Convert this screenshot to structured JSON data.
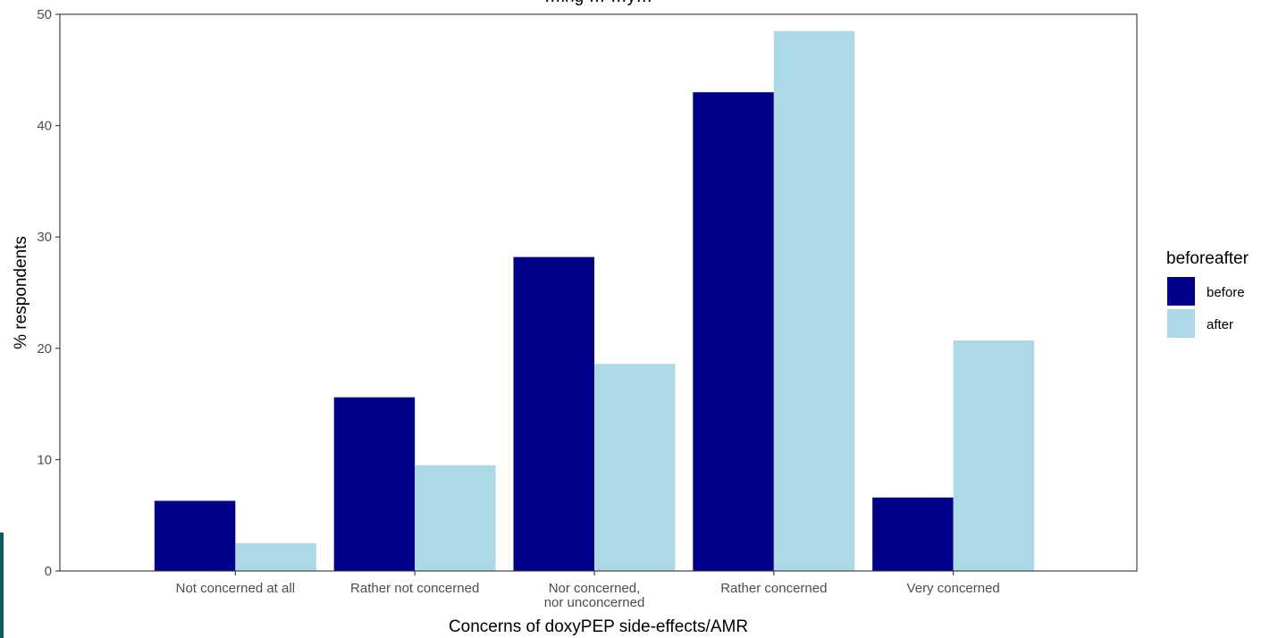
{
  "chart_data": {
    "type": "bar",
    "title": "…ing … …y…",
    "xlabel": "Concerns of doxyPEP side-effects/AMR",
    "ylabel": "% respondents",
    "categories": [
      [
        "Not concerned at all"
      ],
      [
        "Rather not concerned"
      ],
      [
        "Nor concerned,",
        "nor unconcerned"
      ],
      [
        "Rather concerned"
      ],
      [
        "Very concerned"
      ]
    ],
    "series": [
      {
        "name": "before",
        "values": [
          6.3,
          15.6,
          28.2,
          43.0,
          6.6
        ],
        "color": "#00008b"
      },
      {
        "name": "after",
        "values": [
          2.5,
          9.5,
          18.6,
          48.5,
          20.7
        ],
        "color": "#add8e6"
      }
    ],
    "ylim": [
      0,
      50
    ],
    "yticks": [
      0,
      10,
      20,
      30,
      40,
      50
    ],
    "grid": false,
    "legend": {
      "title": "beforeafter",
      "position": "right"
    }
  }
}
